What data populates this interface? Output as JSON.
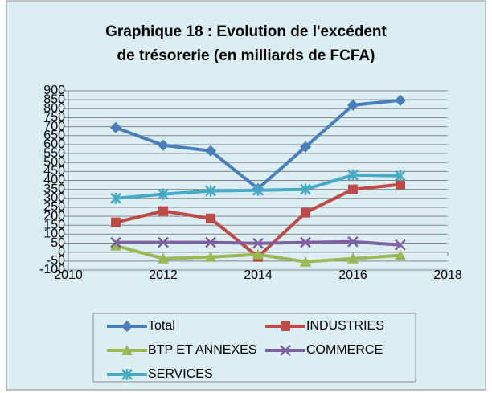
{
  "chart_data": {
    "type": "line",
    "title": [
      "Graphique 18 : Evolution de l'excédent",
      "de trésorerie (en milliards de FCFA)"
    ],
    "x": [
      2011,
      2012,
      2013,
      2014,
      2015,
      2016,
      2017
    ],
    "series": [
      {
        "name": "Total",
        "color": "#4a7ebb",
        "marker": "diamond",
        "values": [
          695,
          596,
          565,
          354,
          587,
          820,
          847
        ]
      },
      {
        "name": "INDUSTRIES",
        "color": "#be4b48",
        "marker": "square",
        "values": [
          166,
          229,
          188,
          -27,
          220,
          350,
          377
        ]
      },
      {
        "name": "BTP ET ANNEXES",
        "color": "#98b954",
        "marker": "triangle",
        "values": [
          36,
          -36,
          -27,
          -13,
          -54,
          -36,
          -18
        ]
      },
      {
        "name": "COMMERCE",
        "color": "#7d60a0",
        "marker": "x",
        "values": [
          54,
          54,
          54,
          49,
          54,
          58,
          40
        ]
      },
      {
        "name": "SERVICES",
        "color": "#46aac5",
        "marker": "star",
        "values": [
          300,
          323,
          341,
          345,
          350,
          430,
          426
        ]
      }
    ],
    "xlim": [
      2010,
      2018
    ],
    "xticks": [
      2010,
      2012,
      2014,
      2016,
      2018
    ],
    "ylim": [
      -100,
      900
    ],
    "yticks": [
      -100,
      -50,
      0,
      50,
      100,
      150,
      200,
      250,
      300,
      350,
      400,
      450,
      500,
      550,
      600,
      650,
      700,
      750,
      800,
      850,
      900
    ],
    "grid": true,
    "legend": "bottom"
  }
}
